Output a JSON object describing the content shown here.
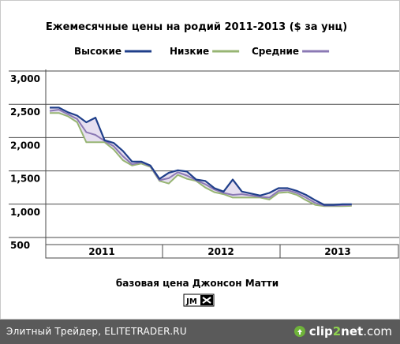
{
  "chart_data": {
    "type": "line",
    "title": "Ежемесячные цены на родий 2011-2013 ($ за унц)",
    "subtitle": "базовая цена Джонсон Матти",
    "y_ticks": [
      "3,000",
      "2,500",
      "2,000",
      "1,500",
      "1,000",
      "500"
    ],
    "ylim": [
      500,
      3000
    ],
    "year_labels": [
      "2011",
      "2012",
      "2013"
    ],
    "months_per_year": [
      12,
      12,
      10
    ],
    "legend_position": "top",
    "series": [
      {
        "name": "Высокие",
        "color": "#1f3f8a",
        "values": [
          2450,
          2450,
          2380,
          2330,
          2230,
          2300,
          1960,
          1920,
          1800,
          1640,
          1640,
          1580,
          1380,
          1470,
          1510,
          1490,
          1370,
          1350,
          1240,
          1190,
          1370,
          1190,
          1160,
          1130,
          1170,
          1240,
          1240,
          1200,
          1140,
          1060,
          990,
          990,
          1000,
          1000
        ]
      },
      {
        "name": "Низкие",
        "color": "#97b573",
        "values": [
          2370,
          2370,
          2320,
          2230,
          1930,
          1930,
          1930,
          1820,
          1660,
          1580,
          1610,
          1560,
          1350,
          1310,
          1440,
          1380,
          1350,
          1250,
          1180,
          1150,
          1100,
          1100,
          1100,
          1100,
          1070,
          1170,
          1180,
          1140,
          1060,
          990,
          970,
          970,
          970,
          975
        ]
      },
      {
        "name": "Средние",
        "color": "#8b79b4",
        "values": [
          2400,
          2420,
          2350,
          2280,
          2080,
          2040,
          1950,
          1870,
          1720,
          1600,
          1630,
          1570,
          1360,
          1390,
          1480,
          1430,
          1360,
          1300,
          1220,
          1170,
          1140,
          1150,
          1130,
          1110,
          1100,
          1200,
          1210,
          1170,
          1100,
          1020,
          980,
          980,
          985,
          990
        ]
      }
    ],
    "logo_text": "JM"
  },
  "footer": {
    "source_text": "Элитный Трейдер, ELITETRADER.RU",
    "brand_part1": "clip",
    "brand_part2": "2",
    "brand_part3": "net",
    "brand_part4": ".com"
  }
}
